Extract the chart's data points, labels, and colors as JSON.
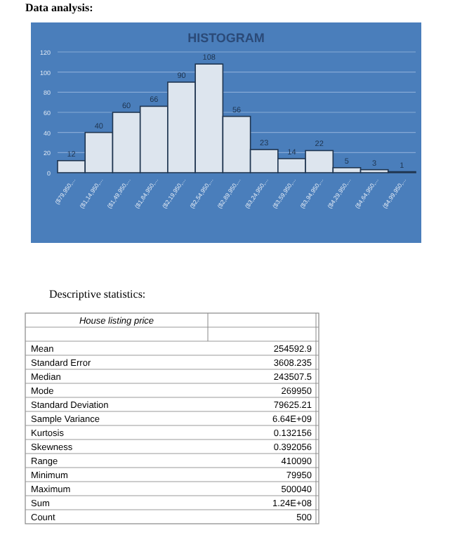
{
  "chart_data": [
    {
      "type": "bar",
      "title": "HISTOGRAM",
      "annotations": [
        "Data analysis:"
      ],
      "categories": [
        "($79,950,...",
        "($1,14,950,...",
        "($1,49,950,...",
        "($1,84,950,...",
        "($2,19,950,...",
        "($2,54,950,...",
        "($2,89,950,...",
        "($3,24,950,...",
        "($3,59,950,...",
        "($3,94,950,...",
        "($4,29,950,...",
        "($4,64,950,...",
        "($4,99,950,..."
      ],
      "values": [
        12,
        40,
        60,
        66,
        90,
        108,
        56,
        23,
        14,
        22,
        5,
        3,
        1
      ],
      "color": "#dde5ee",
      "data_labels": true,
      "ylim": [
        0,
        120
      ],
      "yticks": [
        0,
        20,
        40,
        60,
        80,
        100,
        120
      ],
      "grid": "y"
    },
    {
      "type": "other",
      "title": "Descriptive statistics:",
      "annotations": [
        "House listing price",
        "Mean",
        "254592.9",
        "Standard Error",
        "3608.235",
        "Median",
        "243507.5",
        "Mode",
        "269950",
        "Standard Deviation",
        "79625.21",
        "Sample Variance",
        "6.64E+09",
        "Kurtosis",
        "0.132156",
        "Skewness",
        "0.392056",
        "Range",
        "410090",
        "Minimum",
        "79950",
        "Maximum",
        "500040",
        "Sum",
        "1.24E+08",
        "Count",
        "500"
      ]
    }
  ]
}
